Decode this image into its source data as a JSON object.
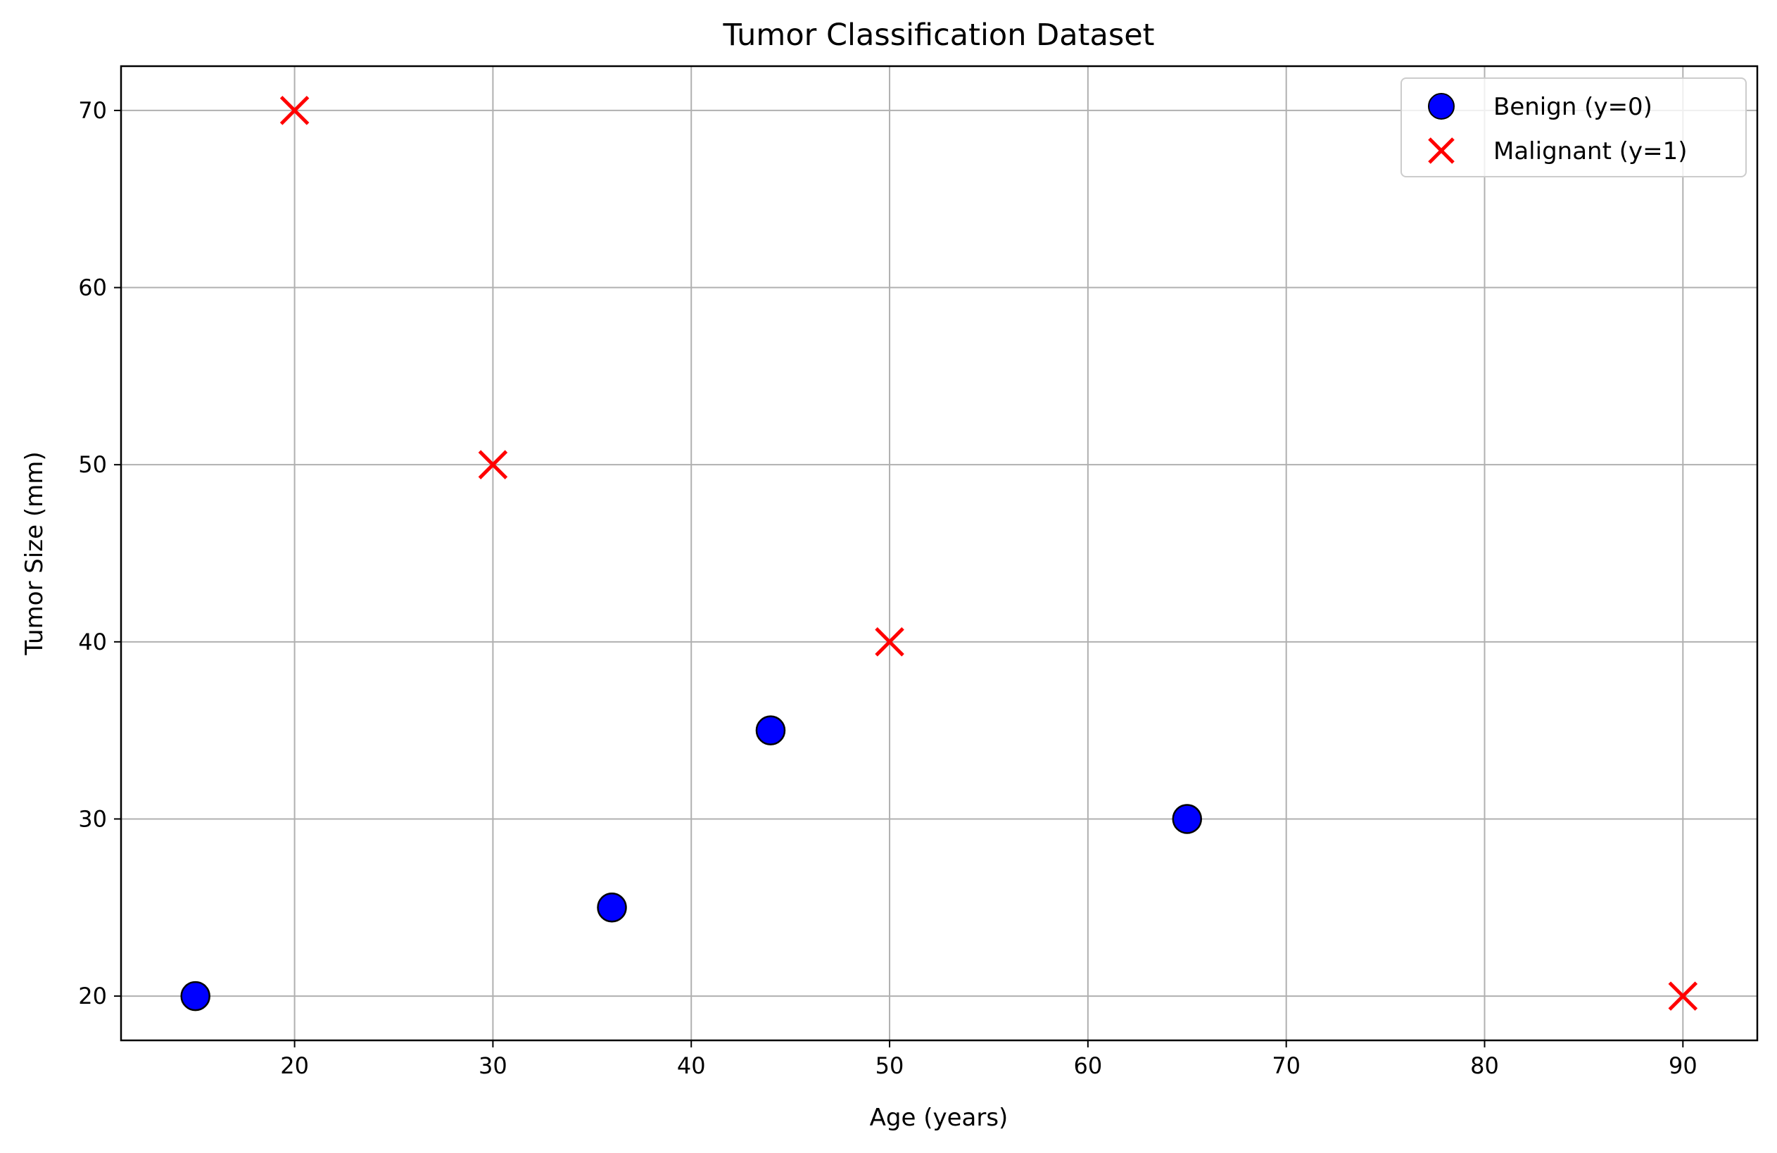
{
  "chart_data": {
    "type": "scatter",
    "title": "Tumor Classification Dataset",
    "xlabel": "Age (years)",
    "ylabel": "Tumor Size (mm)",
    "xlim": [
      11.25,
      93.75
    ],
    "ylim": [
      17.5,
      72.5
    ],
    "xticks": [
      20,
      30,
      40,
      50,
      60,
      70,
      80,
      90
    ],
    "yticks": [
      20,
      30,
      40,
      50,
      60,
      70
    ],
    "grid": true,
    "legend_position": "top-right",
    "series": [
      {
        "name": "Benign (y=0)",
        "marker": "circle",
        "color": "#0000ff",
        "edge_color": "#000000",
        "points": [
          {
            "x": 15,
            "y": 20
          },
          {
            "x": 36,
            "y": 25
          },
          {
            "x": 44,
            "y": 35
          },
          {
            "x": 65,
            "y": 30
          }
        ]
      },
      {
        "name": "Malignant (y=1)",
        "marker": "x",
        "color": "#ff0000",
        "points": [
          {
            "x": 20,
            "y": 70
          },
          {
            "x": 30,
            "y": 50
          },
          {
            "x": 50,
            "y": 40
          },
          {
            "x": 90,
            "y": 20
          }
        ]
      }
    ]
  }
}
